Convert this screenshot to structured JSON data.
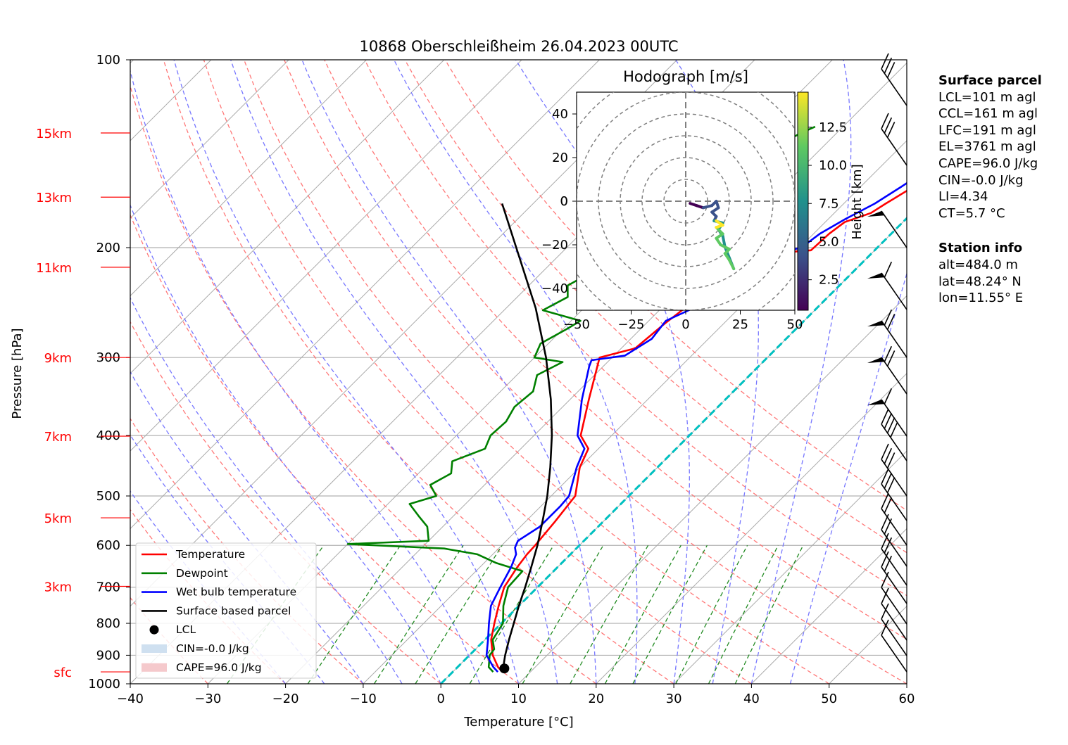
{
  "chart_data": {
    "type": "line",
    "title": "10868 Oberschleißheim 26.04.2023 00UTC",
    "xlabel": "Temperature [°C]",
    "ylabel": "Pressure [hPa]",
    "xlim": [
      -40,
      60
    ],
    "ylim": [
      1000,
      100
    ],
    "y_scale": "log",
    "x_ticks": [
      -40,
      -30,
      -20,
      -10,
      0,
      10,
      20,
      30,
      40,
      50,
      60
    ],
    "y_ticks": [
      100,
      200,
      300,
      400,
      500,
      600,
      700,
      800,
      900,
      1000
    ],
    "height_labels": [
      {
        "label": "15km",
        "p": 131
      },
      {
        "label": "13km",
        "p": 166
      },
      {
        "label": "11km",
        "p": 215
      },
      {
        "label": "9km",
        "p": 300
      },
      {
        "label": "7km",
        "p": 401
      },
      {
        "label": "5km",
        "p": 542
      },
      {
        "label": "3km",
        "p": 698
      },
      {
        "label": "sfc",
        "p": 957
      }
    ],
    "grid": true,
    "legend_position": "lower-left",
    "legend": [
      "Temperature",
      "Dewpoint",
      "Wet bulb temperature",
      "Surface based parcel",
      "LCL",
      "CIN=-0.0 J/kg",
      "CAPE=96.0 J/kg"
    ],
    "series": [
      {
        "name": "Temperature",
        "color": "#ff0000",
        "points": [
          [
            957,
            6.4
          ],
          [
            940,
            5.2
          ],
          [
            900,
            3.0
          ],
          [
            850,
            0.8
          ],
          [
            800,
            -0.9
          ],
          [
            750,
            -2.6
          ],
          [
            700,
            -4.3
          ],
          [
            650,
            -5.2
          ],
          [
            620,
            -5.6
          ],
          [
            600,
            -5.7
          ],
          [
            550,
            -6.2
          ],
          [
            500,
            -6.9
          ],
          [
            450,
            -10.0
          ],
          [
            420,
            -11.3
          ],
          [
            400,
            -14.0
          ],
          [
            350,
            -17.6
          ],
          [
            300,
            -21.6
          ],
          [
            290,
            -18.2
          ],
          [
            265,
            -17.6
          ],
          [
            250,
            -17.0
          ],
          [
            232,
            -14.8
          ],
          [
            225,
            -13.5
          ],
          [
            212,
            -12.5
          ],
          [
            203,
            -10.2
          ],
          [
            202,
            -8.2
          ],
          [
            190,
            -8.0
          ],
          [
            182,
            -7.5
          ],
          [
            176,
            -5.3
          ],
          [
            170,
            -4.6
          ],
          [
            162,
            -3.5
          ],
          [
            155,
            -2.3
          ],
          [
            150,
            -1.8
          ],
          [
            145,
            -2.2
          ],
          [
            137,
            -0.8
          ],
          [
            130,
            0.9
          ],
          [
            127,
            2.7
          ]
        ]
      },
      {
        "name": "Dewpoint",
        "color": "#008000",
        "points": [
          [
            957,
            5.2
          ],
          [
            940,
            4.0
          ],
          [
            900,
            2.6
          ],
          [
            880,
            2.4
          ],
          [
            850,
            1.0
          ],
          [
            800,
            0.2
          ],
          [
            750,
            -2.0
          ],
          [
            700,
            -3.8
          ],
          [
            660,
            -4.0
          ],
          [
            640,
            -8.5
          ],
          [
            620,
            -12.0
          ],
          [
            607,
            -17.0
          ],
          [
            597,
            -30.0
          ],
          [
            590,
            -20.0
          ],
          [
            560,
            -22.0
          ],
          [
            540,
            -24.3
          ],
          [
            515,
            -27.2
          ],
          [
            500,
            -24.8
          ],
          [
            480,
            -27.0
          ],
          [
            460,
            -25.8
          ],
          [
            440,
            -27.2
          ],
          [
            420,
            -24.6
          ],
          [
            400,
            -25.6
          ],
          [
            380,
            -25.4
          ],
          [
            360,
            -26.2
          ],
          [
            340,
            -25.8
          ],
          [
            320,
            -27.4
          ],
          [
            305,
            -25.8
          ],
          [
            300,
            -30.0
          ],
          [
            285,
            -31.0
          ],
          [
            270,
            -29.5
          ],
          [
            262,
            -28.8
          ],
          [
            252,
            -35.0
          ],
          [
            240,
            -33.5
          ],
          [
            230,
            -35.0
          ],
          [
            222,
            -34.0
          ],
          [
            213,
            -36.0
          ],
          [
            206,
            -36.0
          ],
          [
            198,
            -33.5
          ],
          [
            190,
            -34.0
          ],
          [
            180,
            -32.5
          ],
          [
            170,
            -31.5
          ],
          [
            160,
            -30.0
          ],
          [
            150,
            -28.0
          ],
          [
            140,
            -26.6
          ],
          [
            131,
            -24.6
          ],
          [
            128,
            -23.6
          ]
        ]
      },
      {
        "name": "Wet bulb temperature",
        "color": "#0000ff",
        "points": [
          [
            957,
            5.8
          ],
          [
            940,
            4.6
          ],
          [
            900,
            2.2
          ],
          [
            850,
            0.4
          ],
          [
            800,
            -1.6
          ],
          [
            750,
            -3.6
          ],
          [
            700,
            -4.8
          ],
          [
            650,
            -6.0
          ],
          [
            620,
            -7.0
          ],
          [
            605,
            -8.0
          ],
          [
            590,
            -8.5
          ],
          [
            560,
            -7.5
          ],
          [
            520,
            -7.5
          ],
          [
            500,
            -7.7
          ],
          [
            450,
            -10.4
          ],
          [
            420,
            -11.8
          ],
          [
            400,
            -14.4
          ],
          [
            350,
            -18.5
          ],
          [
            310,
            -21.8
          ],
          [
            303,
            -22.3
          ],
          [
            298,
            -18.6
          ],
          [
            280,
            -17.3
          ],
          [
            262,
            -17.8
          ],
          [
            250,
            -15.9
          ],
          [
            232,
            -15.2
          ],
          [
            225,
            -13.0
          ],
          [
            212,
            -13.0
          ],
          [
            203,
            -11.5
          ],
          [
            200,
            -9.8
          ],
          [
            190,
            -9.2
          ],
          [
            180,
            -7.8
          ],
          [
            170,
            -6.0
          ],
          [
            160,
            -4.8
          ],
          [
            150,
            -3.6
          ],
          [
            143,
            -2.2
          ],
          [
            135,
            -0.6
          ],
          [
            130,
            1.0
          ],
          [
            127,
            2.6
          ]
        ]
      },
      {
        "name": "Surface based parcel",
        "color": "#000000",
        "points": [
          [
            957,
            6.4
          ],
          [
            950,
            6.2
          ],
          [
            900,
            4.6
          ],
          [
            850,
            3.1
          ],
          [
            800,
            1.6
          ],
          [
            750,
            0.0
          ],
          [
            700,
            -1.6
          ],
          [
            650,
            -3.4
          ],
          [
            600,
            -5.4
          ],
          [
            550,
            -7.8
          ],
          [
            500,
            -10.5
          ],
          [
            450,
            -13.8
          ],
          [
            400,
            -17.7
          ],
          [
            350,
            -22.5
          ],
          [
            300,
            -28.5
          ],
          [
            250,
            -36.2
          ],
          [
            200,
            -46.5
          ],
          [
            170,
            -54.0
          ]
        ]
      }
    ],
    "lcl": {
      "p": 945,
      "t": 6.2
    },
    "hodograph": {
      "title": "Hodograph [m/s]",
      "xlim": [
        -50,
        50
      ],
      "ylim": [
        -50,
        50
      ],
      "ticks": [
        -50,
        -25,
        0,
        25,
        50
      ],
      "yticks": [
        -40,
        -20,
        0,
        20,
        40
      ],
      "colorbar_label": "Height [km]",
      "colorbar_ticks": [
        2.5,
        5.0,
        7.5,
        10.0,
        12.5
      ],
      "colorbar_range": [
        0.5,
        14.8
      ],
      "points": [
        [
          2,
          -1,
          0.5
        ],
        [
          5,
          -2,
          1.2
        ],
        [
          8,
          -3,
          2.0
        ],
        [
          12,
          -2,
          2.8
        ],
        [
          14,
          0,
          3.4
        ],
        [
          15,
          -3,
          3.8
        ],
        [
          12,
          -5,
          4.3
        ],
        [
          14,
          -7,
          5.0
        ],
        [
          13,
          -9,
          5.6
        ],
        [
          17,
          -10,
          6.1
        ],
        [
          15,
          -13,
          6.6
        ],
        [
          17,
          -16,
          7.0
        ],
        [
          18,
          -21,
          7.5
        ],
        [
          20,
          -26,
          8.2
        ],
        [
          22,
          -31,
          8.9
        ],
        [
          20,
          -27,
          9.6
        ],
        [
          18,
          -24,
          10.1
        ],
        [
          20,
          -22,
          10.7
        ],
        [
          16,
          -20,
          11.3
        ],
        [
          14,
          -17,
          11.8
        ],
        [
          17,
          -15,
          12.4
        ],
        [
          14,
          -12,
          13.0
        ],
        [
          17,
          -11,
          13.6
        ],
        [
          14,
          -9,
          14.2
        ]
      ]
    }
  },
  "surface_parcel": {
    "header": "Surface parcel",
    "lines": [
      "LCL=101 m agl",
      "CCL=161 m agl",
      "LFC=191 m agl",
      "EL=3761 m agl",
      "CAPE=96.0 J/kg",
      "CIN=-0.0 J/kg",
      "LI=4.34",
      "CT=5.7 °C"
    ]
  },
  "station_info": {
    "header": "Station info",
    "lines": [
      "alt=484.0 m",
      "lat=48.24° N",
      "lon=11.55° E"
    ]
  },
  "colors": {
    "temperature": "#ff0000",
    "dewpoint": "#008000",
    "wetbulb": "#0000ff",
    "parcel": "#000000",
    "height_labels": "#ff0000",
    "freezing_level": "#00c0c0",
    "dry_adiabats": "#ff7777",
    "moist_adiabats": "#7777ff",
    "mixing_ratio": "#228b22",
    "isotherms": "#aaaaaa",
    "cin_fill": "#cfe0f0",
    "cape_fill": "#f5c9cc"
  }
}
